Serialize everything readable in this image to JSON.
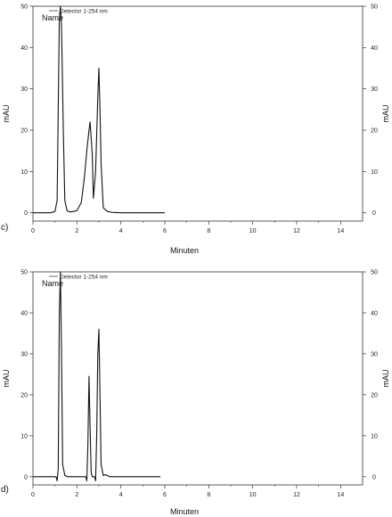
{
  "chart_data": [
    {
      "type": "line",
      "panel_label": "c)",
      "legend_entry": "Detector 1-254 nm",
      "annotation": "Name",
      "xlabel": "Minuten",
      "ylabel_left": "mAU",
      "ylabel_right": "mAU",
      "xlim": [
        0,
        15
      ],
      "ylim": [
        -2,
        50
      ],
      "xticks": [
        0,
        2,
        4,
        6,
        8,
        10,
        12,
        14
      ],
      "yticks": [
        0,
        10,
        20,
        30,
        40,
        50
      ],
      "grid": false,
      "legend_position": "top-left",
      "series": [
        {
          "x": [
            0,
            0.8,
            1.0,
            1.1,
            1.15,
            1.2,
            1.25,
            1.3,
            1.38,
            1.45,
            1.55,
            1.7,
            2.0,
            2.2,
            2.35,
            2.45,
            2.55,
            2.6,
            2.7,
            2.75,
            2.85,
            2.95,
            3.0,
            3.05,
            3.1,
            3.2,
            3.4,
            3.6,
            4.0,
            6.0
          ],
          "y": [
            0,
            0,
            0.3,
            3,
            25,
            47,
            50,
            45,
            20,
            3,
            0.5,
            0.2,
            0.5,
            2.5,
            9,
            15,
            20,
            22,
            14,
            3.5,
            10,
            28,
            35,
            25,
            12,
            1.2,
            0.3,
            0.1,
            0,
            0
          ]
        }
      ]
    },
    {
      "type": "line",
      "panel_label": "d)",
      "legend_entry": "Detector 1-254 nm",
      "annotation": "Name",
      "xlabel": "Minuten",
      "ylabel_left": "mAU",
      "ylabel_right": "mAU",
      "xlim": [
        0,
        15
      ],
      "ylim": [
        -2,
        50
      ],
      "xticks": [
        0,
        2,
        4,
        6,
        8,
        10,
        12,
        14
      ],
      "yticks": [
        0,
        10,
        20,
        30,
        40,
        50
      ],
      "grid": false,
      "legend_position": "top-left",
      "series": [
        {
          "x": [
            0,
            1.05,
            1.1,
            1.15,
            1.2,
            1.25,
            1.3,
            1.35,
            1.45,
            1.6,
            2.4,
            2.45,
            2.5,
            2.55,
            2.6,
            2.65,
            2.7,
            2.8,
            2.85,
            2.9,
            2.95,
            3.0,
            3.05,
            3.1,
            3.2,
            3.3,
            3.5,
            5.8
          ],
          "y": [
            0,
            0,
            -1,
            2,
            40,
            50,
            30,
            3,
            0.3,
            0,
            0,
            -1,
            8,
            24.5,
            12,
            1,
            0,
            0,
            -1,
            10,
            30,
            36,
            20,
            3,
            0.3,
            0.5,
            0,
            0
          ]
        }
      ]
    }
  ]
}
